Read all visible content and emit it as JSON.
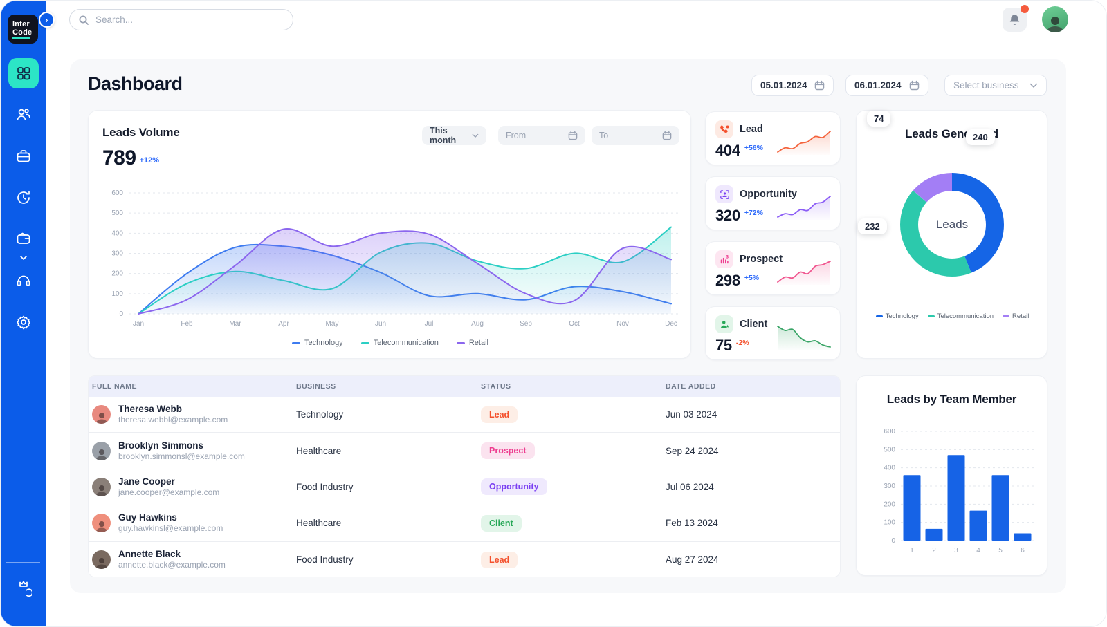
{
  "sidebar": {
    "logo_line1": "Inter",
    "logo_line2": "Code",
    "items": [
      "dashboard",
      "contacts",
      "business",
      "history",
      "payments",
      "support",
      "settings"
    ],
    "active_item": "dashboard",
    "colors": {
      "background": "#0b5ce9",
      "active_tile": "#2ce5c6"
    }
  },
  "topbar": {
    "search_placeholder": "Search...",
    "notification_badge": true
  },
  "header": {
    "title": "Dashboard",
    "date_from": "05.01.2024",
    "date_to": "06.01.2024",
    "business_select": "Select business"
  },
  "leads_volume": {
    "title": "Leads Volume",
    "total": "789",
    "change": "+12%",
    "filter_label": "This month",
    "from_placeholder": "From",
    "to_placeholder": "To"
  },
  "stat_cards": [
    {
      "label": "Lead",
      "value": "404",
      "change": "+56%",
      "change_color": "#2f6bfa",
      "icon": "phone-lead-icon",
      "icon_fg": "#f4502c",
      "icon_bg": "#fdeae3",
      "spark_color": "#f4633c",
      "spark": [
        8,
        13,
        12,
        18,
        20,
        26,
        25,
        32
      ]
    },
    {
      "label": "Opportunity",
      "value": "320",
      "change": "+72%",
      "change_color": "#2f6bfa",
      "icon": "user-scan-icon",
      "icon_fg": "#7a3ff2",
      "icon_bg": "#efe8fd",
      "spark_color": "#8b5cf6",
      "spark": [
        6,
        10,
        9,
        15,
        14,
        22,
        24,
        31
      ]
    },
    {
      "label": "Prospect",
      "value": "298",
      "change": "+5%",
      "change_color": "#2f6bfa",
      "icon": "chart-dollar-icon",
      "icon_fg": "#ee3d8f",
      "icon_bg": "#fde6f1",
      "spark_color": "#f0568f",
      "spark": [
        5,
        11,
        10,
        17,
        15,
        24,
        26,
        30
      ]
    },
    {
      "label": "Client",
      "value": "75",
      "change": "-2%",
      "change_color": "#f4502c",
      "icon": "user-star-icon",
      "icon_fg": "#27a857",
      "icon_bg": "#e2f5e9",
      "spark_color": "#3aa567",
      "spark": [
        30,
        26,
        27,
        19,
        15,
        16,
        12,
        10
      ]
    }
  ],
  "chart_data": [
    {
      "id": "leads_volume_chart",
      "type": "area",
      "title": "Leads Volume",
      "categories": [
        "Jan",
        "Feb",
        "Mar",
        "Apr",
        "May",
        "Jun",
        "Jul",
        "Aug",
        "Sep",
        "Oct",
        "Nov",
        "Dec"
      ],
      "series": [
        {
          "name": "Technology",
          "color": "#3d7bf0",
          "values": [
            0,
            200,
            330,
            335,
            290,
            205,
            90,
            100,
            70,
            135,
            110,
            50
          ]
        },
        {
          "name": "Telecommunication",
          "color": "#2bcfc4",
          "values": [
            0,
            150,
            210,
            165,
            125,
            305,
            350,
            262,
            225,
            300,
            258,
            430
          ]
        },
        {
          "name": "Retail",
          "color": "#8b66ee",
          "values": [
            0,
            70,
            240,
            420,
            335,
            400,
            395,
            250,
            100,
            65,
            325,
            270
          ]
        }
      ],
      "ylim": [
        0,
        600
      ],
      "ytick_step": 100,
      "grid": true,
      "legend_position": "bottom"
    },
    {
      "id": "leads_generated_chart",
      "type": "donut",
      "title": "Leads Generated",
      "center_label": "Leads",
      "segments": [
        {
          "label": "Technology",
          "value": 240,
          "color": "#1565e6"
        },
        {
          "label": "Telecommunication",
          "value": 232,
          "color": "#2cc9ac"
        },
        {
          "label": "Retail",
          "value": 74,
          "color": "#a37ef5"
        }
      ],
      "legend_position": "bottom"
    },
    {
      "id": "leads_by_team_member_chart",
      "type": "bar",
      "title": "Leads by Team Member",
      "categories": [
        "1",
        "2",
        "3",
        "4",
        "5",
        "6"
      ],
      "values": [
        360,
        65,
        470,
        165,
        360,
        40
      ],
      "color": "#1663e6",
      "ylim": [
        0,
        600
      ],
      "ytick_step": 100,
      "grid": true
    }
  ],
  "table": {
    "headers": [
      "Full Name",
      "Business",
      "Status",
      "Date Added"
    ],
    "rows": [
      {
        "name": "Theresa Webb",
        "email": "theresa.webbl@example.com",
        "business": "Technology",
        "status": "Lead",
        "date": "Jun 03 2024",
        "avatar_color": "#e8897f"
      },
      {
        "name": "Brooklyn Simmons",
        "email": "brooklyn.simmonsl@example.com",
        "business": "Healthcare",
        "status": "Prospect",
        "date": "Sep 24 2024",
        "avatar_color": "#9aa0a8"
      },
      {
        "name": "Jane Cooper",
        "email": "jane.cooper@example.com",
        "business": "Food Industry",
        "status": "Opportunity",
        "date": "Jul 06 2024",
        "avatar_color": "#8a7f78"
      },
      {
        "name": "Guy Hawkins",
        "email": "guy.hawkinsl@example.com",
        "business": "Healthcare",
        "status": "Client",
        "date": "Feb 13 2024",
        "avatar_color": "#ef8f7c"
      },
      {
        "name": "Annette Black",
        "email": "annette.black@example.com",
        "business": "Food Industry",
        "status": "Lead",
        "date": "Aug 27 2024",
        "avatar_color": "#7a6a60"
      }
    ],
    "status_styles": {
      "Lead": {
        "bg": "#fdeee6",
        "fg": "#f4502c"
      },
      "Prospect": {
        "bg": "#fbe3ef",
        "fg": "#ee3d8f"
      },
      "Opportunity": {
        "bg": "#efe9fd",
        "fg": "#7a3ff2"
      },
      "Client": {
        "bg": "#e2f5e9",
        "fg": "#27a857"
      }
    }
  }
}
